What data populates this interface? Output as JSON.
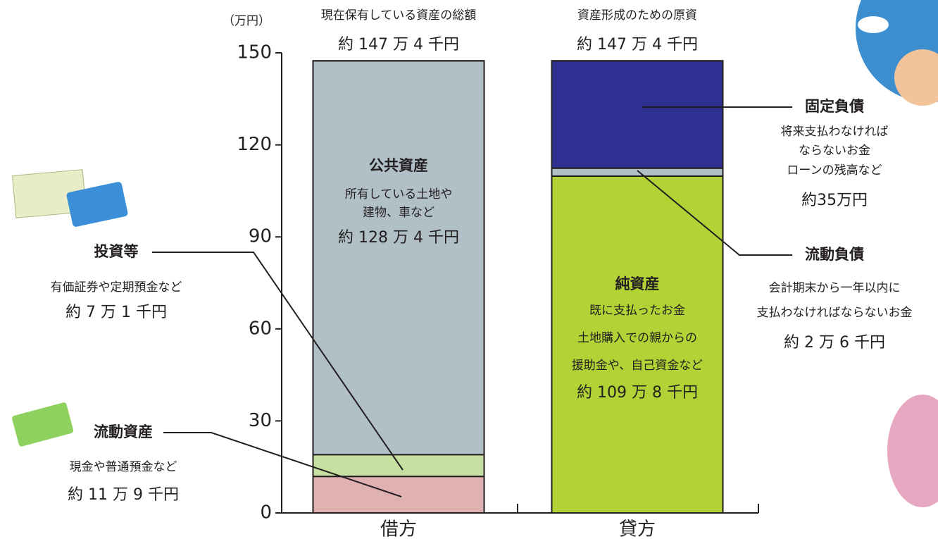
{
  "chart_data": {
    "type": "bar",
    "stacked": true,
    "unit": "（万円）",
    "categories": [
      "借方",
      "貸方"
    ],
    "ylim": [
      0,
      150
    ],
    "yticks": [
      0,
      30,
      60,
      90,
      120,
      150
    ],
    "totals": {
      "labels": [
        "現在保有している資産の総額",
        "資産形成のための原資"
      ],
      "values": [
        147.4,
        147.4
      ],
      "value_labels": [
        "約 147 万 4 千円",
        "約 147 万 4 千円"
      ]
    },
    "series": [
      {
        "name": "流動資産",
        "color": "#dfb2b1",
        "values": [
          11.9,
          null
        ],
        "value_labels": [
          "約 11 万 9 千円",
          null
        ],
        "description": [
          "現金や普通預金など"
        ]
      },
      {
        "name": "投資等",
        "color": "#c6e0a1",
        "values": [
          7.1,
          null
        ],
        "value_labels": [
          "約 7 万 1 千円",
          null
        ],
        "description": [
          "有価証券や定期預金など"
        ]
      },
      {
        "name": "公共資産",
        "color": "#b1bfc7",
        "values": [
          128.4,
          null
        ],
        "value_labels": [
          "約 128 万 4 千円",
          null
        ],
        "description": [
          "所有している土地や",
          "建物、車など"
        ]
      },
      {
        "name": "純資産",
        "color": "#b2d235",
        "values": [
          null,
          109.8
        ],
        "value_labels": [
          null,
          "約 109 万 8 千円"
        ],
        "description": [
          "既に支払ったお金",
          "土地購入での親からの",
          "援助金や、自己資金など"
        ]
      },
      {
        "name": "流動負債",
        "color": "#b1bfc7",
        "values": [
          null,
          2.6
        ],
        "value_labels": [
          null,
          "約 2 万 6 千円"
        ],
        "description": [
          "会計期末から一年以内に",
          "支払わなければならないお金"
        ]
      },
      {
        "name": "固定負債",
        "color": "#2e3192",
        "values": [
          null,
          35
        ],
        "value_labels": [
          null,
          "約35万円"
        ],
        "description": [
          "将来支払わなければ",
          "ならないお金",
          "ローンの残高など"
        ]
      }
    ]
  }
}
